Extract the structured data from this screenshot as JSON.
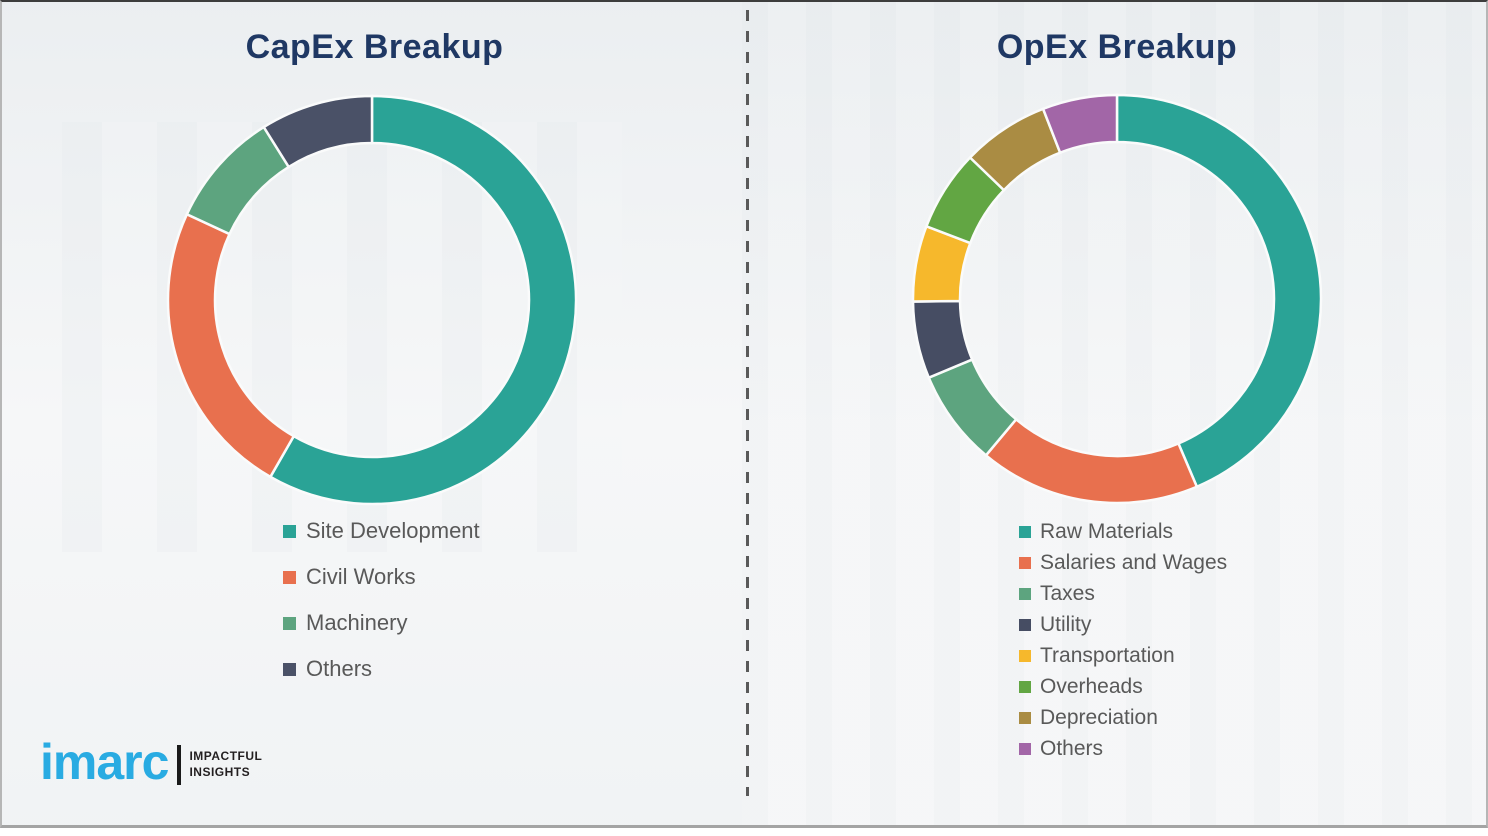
{
  "chart_data": [
    {
      "type": "pie",
      "donut": true,
      "title": "CapEx Breakup",
      "start_angle_deg": 0,
      "direction": "clockwise",
      "legend_position": "below-left",
      "labels": [
        "Site Development",
        "Civil Works",
        "Machinery",
        "Others"
      ],
      "values": [
        58.3,
        23.6,
        9.2,
        8.9
      ],
      "colors": [
        "#2aa396",
        "#e8704e",
        "#5da47f",
        "#4a5167"
      ]
    },
    {
      "type": "pie",
      "donut": true,
      "title": "OpEx Breakup",
      "start_angle_deg": 0,
      "direction": "clockwise",
      "legend_position": "below-left",
      "labels": [
        "Raw Materials",
        "Salaries and Wages",
        "Taxes",
        "Utility",
        "Transportation",
        "Overheads",
        "Depreciation",
        "Others"
      ],
      "values": [
        43.6,
        17.5,
        7.6,
        6.1,
        6.0,
        6.4,
        6.9,
        5.9
      ],
      "colors": [
        "#2aa396",
        "#e8704e",
        "#5da47f",
        "#464d63",
        "#f6b82c",
        "#62a643",
        "#aa8c43",
        "#a266a7"
      ]
    }
  ],
  "logo": {
    "brand": "imarc",
    "tagline_line1": "IMPACTFUL",
    "tagline_line2": "INSIGHTS",
    "brand_color": "#29abe2"
  },
  "style_colors": {
    "title_text": "#1f3864",
    "legend_text": "#595959",
    "divider": "#595959",
    "background": "#f6f7f8"
  }
}
